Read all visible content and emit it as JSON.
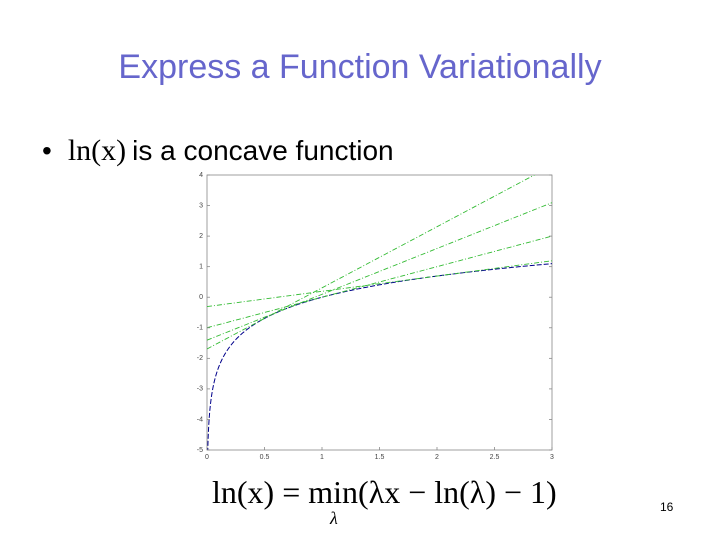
{
  "header": {
    "title": "Express a Function Variationally"
  },
  "bullet": {
    "symbol": "•",
    "math": "ln(x)",
    "text": "is a concave function"
  },
  "chart_data": {
    "type": "line",
    "xlim": [
      0,
      3
    ],
    "xticks": [
      0,
      0.5,
      1,
      1.5,
      2,
      2.5,
      3
    ],
    "ylim": [
      -5,
      4
    ],
    "yticks": [
      -5,
      -4,
      -3,
      -2,
      -1,
      0,
      1,
      2,
      3,
      4
    ],
    "curve": {
      "function": "ln(x)",
      "color": "#00008b"
    },
    "tangents": {
      "function": "λx − ln(λ) − 1",
      "lambdas": [
        0.5,
        1,
        1.5,
        2
      ],
      "color": "#33bb33"
    }
  },
  "equation": {
    "lhs": "ln(x) = ",
    "op": "min",
    "body": "(λx − ln(λ) − 1)",
    "sub": "λ"
  },
  "footer": {
    "page": "16"
  }
}
